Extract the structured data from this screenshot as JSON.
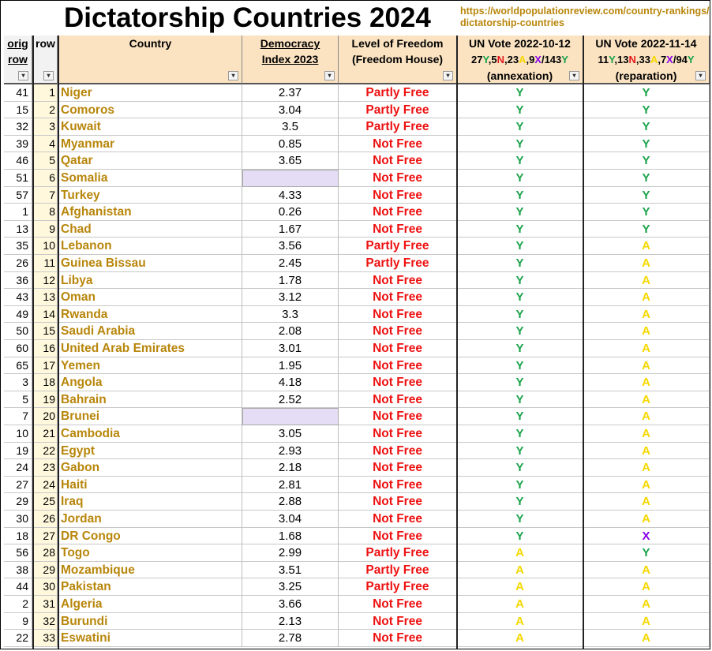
{
  "title": "Dictatorship Countries 2024",
  "source_url": "https://worldpopulationreview.com/country-rankings/dictatorship-countries",
  "headers": {
    "orig_row_line1": "orig",
    "orig_row_line2": "row",
    "row": "row",
    "country": "Country",
    "democracy_line1": "Democracy",
    "democracy_line2": "Index 2023",
    "freedom_line1": "Level of Freedom",
    "freedom_line2": "(Freedom House)",
    "un1_line1": "UN Vote 2022-10-12",
    "un1_counts": [
      {
        "text": "27",
        "v": ""
      },
      {
        "text": "Y",
        "v": "Y"
      },
      {
        "text": ",5",
        "v": ""
      },
      {
        "text": "N",
        "v": "N"
      },
      {
        "text": ",23",
        "v": ""
      },
      {
        "text": "A",
        "v": "A"
      },
      {
        "text": ",9",
        "v": ""
      },
      {
        "text": "X",
        "v": "X"
      },
      {
        "text": "/143",
        "v": ""
      },
      {
        "text": "Y",
        "v": "Y"
      }
    ],
    "un1_line3": "(annexation)",
    "un2_line1": "UN Vote 2022-11-14",
    "un2_counts": [
      {
        "text": "11",
        "v": ""
      },
      {
        "text": "Y",
        "v": "Y"
      },
      {
        "text": ",13",
        "v": ""
      },
      {
        "text": "N",
        "v": "N"
      },
      {
        "text": ",33",
        "v": ""
      },
      {
        "text": "A",
        "v": "A"
      },
      {
        "text": ",7",
        "v": ""
      },
      {
        "text": "X",
        "v": "X"
      },
      {
        "text": "/94",
        "v": ""
      },
      {
        "text": "Y",
        "v": "Y"
      }
    ],
    "un2_line3": "(reparation)"
  },
  "colors": {
    "yes": "#1aa34a",
    "abstain": "#f5d800",
    "absent": "#8a00e6",
    "no": "#e61a1a",
    "country_text": "#b8860b",
    "freedom_text": "#ee1111",
    "header_bg": "#fbe3c2",
    "empty_cell": "#e5dcf5"
  },
  "rows": [
    {
      "orig": "41",
      "row": "1",
      "country": "Niger",
      "demo": "2.37",
      "freedom": "Partly Free",
      "un1": "Y",
      "un2": "Y"
    },
    {
      "orig": "15",
      "row": "2",
      "country": "Comoros",
      "demo": "3.04",
      "freedom": "Partly Free",
      "un1": "Y",
      "un2": "Y"
    },
    {
      "orig": "32",
      "row": "3",
      "country": "Kuwait",
      "demo": "3.5",
      "freedom": "Partly Free",
      "un1": "Y",
      "un2": "Y"
    },
    {
      "orig": "39",
      "row": "4",
      "country": "Myanmar",
      "demo": "0.85",
      "freedom": "Not Free",
      "un1": "Y",
      "un2": "Y"
    },
    {
      "orig": "46",
      "row": "5",
      "country": "Qatar",
      "demo": "3.65",
      "freedom": "Not Free",
      "un1": "Y",
      "un2": "Y"
    },
    {
      "orig": "51",
      "row": "6",
      "country": "Somalia",
      "demo": "",
      "freedom": "Not Free",
      "un1": "Y",
      "un2": "Y"
    },
    {
      "orig": "57",
      "row": "7",
      "country": "Turkey",
      "demo": "4.33",
      "freedom": "Not Free",
      "un1": "Y",
      "un2": "Y"
    },
    {
      "orig": "1",
      "row": "8",
      "country": "Afghanistan",
      "demo": "0.26",
      "freedom": "Not Free",
      "un1": "Y",
      "un2": "Y"
    },
    {
      "orig": "13",
      "row": "9",
      "country": "Chad",
      "demo": "1.67",
      "freedom": "Not Free",
      "un1": "Y",
      "un2": "Y"
    },
    {
      "orig": "35",
      "row": "10",
      "country": "Lebanon",
      "demo": "3.56",
      "freedom": "Partly Free",
      "un1": "Y",
      "un2": "A"
    },
    {
      "orig": "26",
      "row": "11",
      "country": "Guinea Bissau",
      "demo": "2.45",
      "freedom": "Partly Free",
      "un1": "Y",
      "un2": "A"
    },
    {
      "orig": "36",
      "row": "12",
      "country": "Libya",
      "demo": "1.78",
      "freedom": "Not Free",
      "un1": "Y",
      "un2": "A"
    },
    {
      "orig": "43",
      "row": "13",
      "country": "Oman",
      "demo": "3.12",
      "freedom": "Not Free",
      "un1": "Y",
      "un2": "A"
    },
    {
      "orig": "49",
      "row": "14",
      "country": "Rwanda",
      "demo": "3.3",
      "freedom": "Not Free",
      "un1": "Y",
      "un2": "A"
    },
    {
      "orig": "50",
      "row": "15",
      "country": "Saudi Arabia",
      "demo": "2.08",
      "freedom": "Not Free",
      "un1": "Y",
      "un2": "A"
    },
    {
      "orig": "60",
      "row": "16",
      "country": "United Arab Emirates",
      "demo": "3.01",
      "freedom": "Not Free",
      "un1": "Y",
      "un2": "A"
    },
    {
      "orig": "65",
      "row": "17",
      "country": "Yemen",
      "demo": "1.95",
      "freedom": "Not Free",
      "un1": "Y",
      "un2": "A"
    },
    {
      "orig": "3",
      "row": "18",
      "country": "Angola",
      "demo": "4.18",
      "freedom": "Not Free",
      "un1": "Y",
      "un2": "A"
    },
    {
      "orig": "5",
      "row": "19",
      "country": "Bahrain",
      "demo": "2.52",
      "freedom": "Not Free",
      "un1": "Y",
      "un2": "A"
    },
    {
      "orig": "7",
      "row": "20",
      "country": "Brunei",
      "demo": "",
      "freedom": "Not Free",
      "un1": "Y",
      "un2": "A"
    },
    {
      "orig": "10",
      "row": "21",
      "country": "Cambodia",
      "demo": "3.05",
      "freedom": "Not Free",
      "un1": "Y",
      "un2": "A"
    },
    {
      "orig": "19",
      "row": "22",
      "country": "Egypt",
      "demo": "2.93",
      "freedom": "Not Free",
      "un1": "Y",
      "un2": "A"
    },
    {
      "orig": "24",
      "row": "23",
      "country": "Gabon",
      "demo": "2.18",
      "freedom": "Not Free",
      "un1": "Y",
      "un2": "A"
    },
    {
      "orig": "27",
      "row": "24",
      "country": "Haiti",
      "demo": "2.81",
      "freedom": "Not Free",
      "un1": "Y",
      "un2": "A"
    },
    {
      "orig": "29",
      "row": "25",
      "country": "Iraq",
      "demo": "2.88",
      "freedom": "Not Free",
      "un1": "Y",
      "un2": "A"
    },
    {
      "orig": "30",
      "row": "26",
      "country": "Jordan",
      "demo": "3.04",
      "freedom": "Not Free",
      "un1": "Y",
      "un2": "A"
    },
    {
      "orig": "18",
      "row": "27",
      "country": "DR Congo",
      "demo": "1.68",
      "freedom": "Not Free",
      "un1": "Y",
      "un2": "X"
    },
    {
      "orig": "56",
      "row": "28",
      "country": "Togo",
      "demo": "2.99",
      "freedom": "Partly Free",
      "un1": "A",
      "un2": "Y"
    },
    {
      "orig": "38",
      "row": "29",
      "country": "Mozambique",
      "demo": "3.51",
      "freedom": "Partly Free",
      "un1": "A",
      "un2": "A"
    },
    {
      "orig": "44",
      "row": "30",
      "country": "Pakistan",
      "demo": "3.25",
      "freedom": "Partly Free",
      "un1": "A",
      "un2": "A"
    },
    {
      "orig": "2",
      "row": "31",
      "country": "Algeria",
      "demo": "3.66",
      "freedom": "Not Free",
      "un1": "A",
      "un2": "A"
    },
    {
      "orig": "9",
      "row": "32",
      "country": "Burundi",
      "demo": "2.13",
      "freedom": "Not Free",
      "un1": "A",
      "un2": "A"
    },
    {
      "orig": "22",
      "row": "33",
      "country": "Eswatini",
      "demo": "2.78",
      "freedom": "Not Free",
      "un1": "A",
      "un2": "A"
    }
  ]
}
